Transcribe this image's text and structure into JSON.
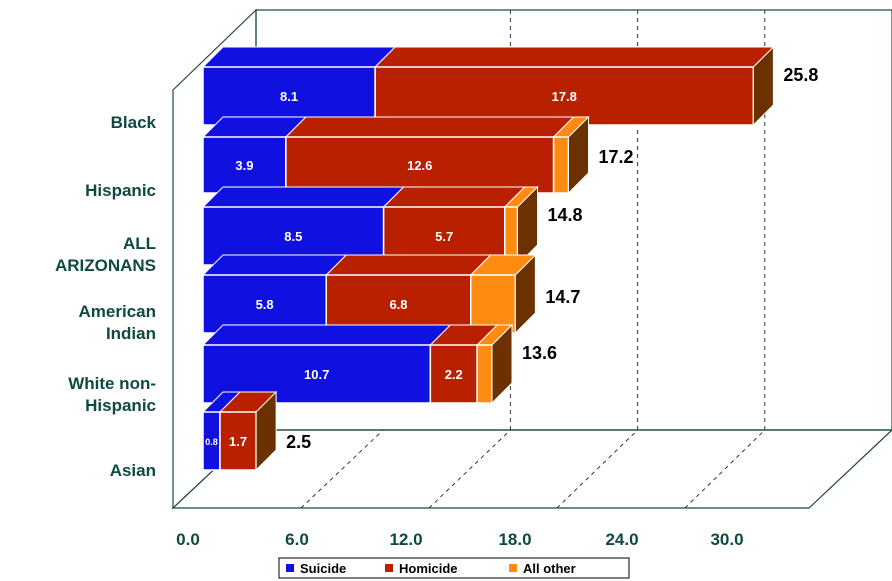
{
  "chart_data": {
    "type": "bar",
    "orientation": "horizontal",
    "stacked": true,
    "style": "3d",
    "categories": [
      "Black",
      "Hispanic",
      "ALL ARIZONANS",
      "American Indian",
      "White non-Hispanic",
      "Asian"
    ],
    "category_lines": [
      [
        "Black"
      ],
      [
        "Hispanic"
      ],
      [
        "ALL",
        "ARIZONANS"
      ],
      [
        "American",
        "Indian"
      ],
      [
        "White non-",
        "Hispanic"
      ],
      [
        "Asian"
      ]
    ],
    "series": [
      {
        "name": "Suicide",
        "color": "#1010e0",
        "values": [
          8.1,
          3.9,
          8.5,
          5.8,
          10.7,
          0.8
        ]
      },
      {
        "name": "Homicide",
        "color": "#b82000",
        "values": [
          17.8,
          12.6,
          5.7,
          6.8,
          2.2,
          1.7
        ]
      },
      {
        "name": "All other",
        "color": "#ff8c10",
        "values": [
          0,
          0.7,
          0.6,
          2.1,
          0.7,
          0
        ]
      }
    ],
    "segment_labels": [
      [
        "8.1",
        "17.8"
      ],
      [
        "3.9",
        "12.6"
      ],
      [
        "8.5",
        "5.7"
      ],
      [
        "5.8",
        "6.8"
      ],
      [
        "10.7",
        "2.2"
      ],
      [
        "0.8",
        "1.7"
      ]
    ],
    "totals": [
      "25.8",
      "17.2",
      "14.8",
      "14.7",
      "13.6",
      "2.5"
    ],
    "xlim": [
      0,
      30
    ],
    "xticks": [
      "0.0",
      "6.0",
      "12.0",
      "18.0",
      "24.0",
      "30.0"
    ],
    "grid": true,
    "legend_position": "bottom",
    "colors": {
      "text": "#0f4a40",
      "frame": "#1f4a40",
      "side": "#6b3200",
      "sideTop": "#7a3a00"
    }
  }
}
